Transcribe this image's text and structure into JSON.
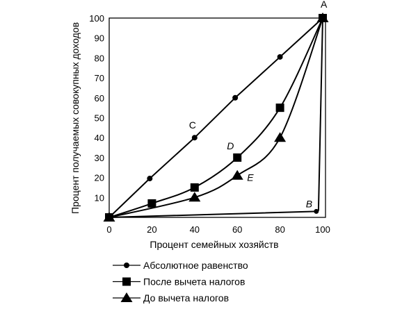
{
  "chart_data": {
    "type": "line",
    "xlabel": "Процент семейных хозяйств",
    "ylabel": "Процент получаемых совокупных доходов",
    "xlim": [
      0,
      100
    ],
    "ylim": [
      0,
      100
    ],
    "x_ticks": [
      "0",
      "20",
      "40",
      "60",
      "80",
      "100"
    ],
    "y_ticks": [
      "10",
      "20",
      "30",
      "40",
      "50",
      "60",
      "70",
      "80",
      "90",
      "100"
    ],
    "grid": false,
    "legend_position": "bottom",
    "series": [
      {
        "name": "Абсолютное равенство",
        "marker": "circle",
        "x": [
          0,
          19,
          40,
          59,
          80,
          100
        ],
        "y": [
          0,
          19.5,
          40,
          60,
          80.5,
          100
        ]
      },
      {
        "name": "После вычета налогов",
        "marker": "square",
        "x": [
          0,
          20,
          40,
          60,
          80,
          100
        ],
        "y": [
          0,
          7,
          15,
          30,
          55,
          100
        ]
      },
      {
        "name": "До вычета налогов",
        "marker": "triangle",
        "x": [
          0,
          40,
          60,
          80,
          100
        ],
        "y": [
          0,
          10,
          21,
          40,
          100
        ]
      }
    ],
    "perfect_inequality": {
      "x": [
        0,
        97,
        98,
        100
      ],
      "y": [
        0,
        3,
        3.5,
        100
      ]
    },
    "annotations": [
      {
        "text": "A",
        "x": 100,
        "y": 100,
        "style": "normal"
      },
      {
        "text": "C",
        "x": 40,
        "y": 40,
        "style": "normal"
      },
      {
        "text": "D",
        "x": 60,
        "y": 30,
        "style": "italic"
      },
      {
        "text": "E",
        "x": 60,
        "y": 21,
        "style": "italic"
      },
      {
        "text": "B",
        "x": 97,
        "y": 3,
        "style": "italic"
      }
    ]
  }
}
